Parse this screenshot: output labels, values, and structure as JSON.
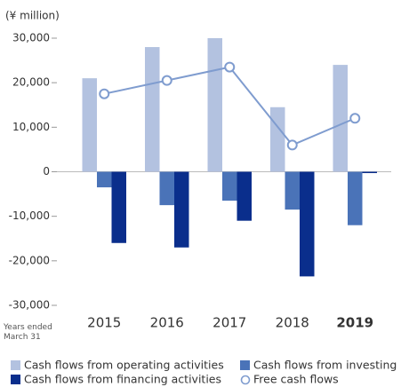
{
  "chart_data": {
    "type": "bar",
    "y_label": "(¥ million)",
    "x_label": "Years ended March 31",
    "categories": [
      "2015",
      "2016",
      "2017",
      "2018",
      "2019"
    ],
    "series": [
      {
        "name": "Cash flows from operating activities",
        "color": "#b3c2e0",
        "values": [
          21000,
          28000,
          30000,
          14500,
          24000
        ]
      },
      {
        "name": "Cash flows from investing activities",
        "color": "#4a73b8",
        "values": [
          -3500,
          -7500,
          -6500,
          -8500,
          -12000
        ]
      },
      {
        "name": "Cash flows from financing activities",
        "color": "#0a2e8c",
        "values": [
          -16000,
          -17000,
          -11000,
          -23500,
          -300
        ]
      },
      {
        "name": "Free cash flows",
        "type": "line",
        "color": "#7f9ccf",
        "values": [
          17500,
          20500,
          23500,
          6000,
          12000
        ]
      }
    ],
    "ylim": [
      -30000,
      30000
    ],
    "yticks": [
      {
        "value": -30000,
        "label": "-30,000"
      },
      {
        "value": -20000,
        "label": "-20,000"
      },
      {
        "value": -10000,
        "label": "-10,000"
      },
      0,
      {
        "value": 10000,
        "label": "10,000"
      },
      {
        "value": 20000,
        "label": "20,000"
      },
      {
        "value": 30000,
        "label": "30,000"
      }
    ],
    "grid": false,
    "legend": "bottom"
  }
}
